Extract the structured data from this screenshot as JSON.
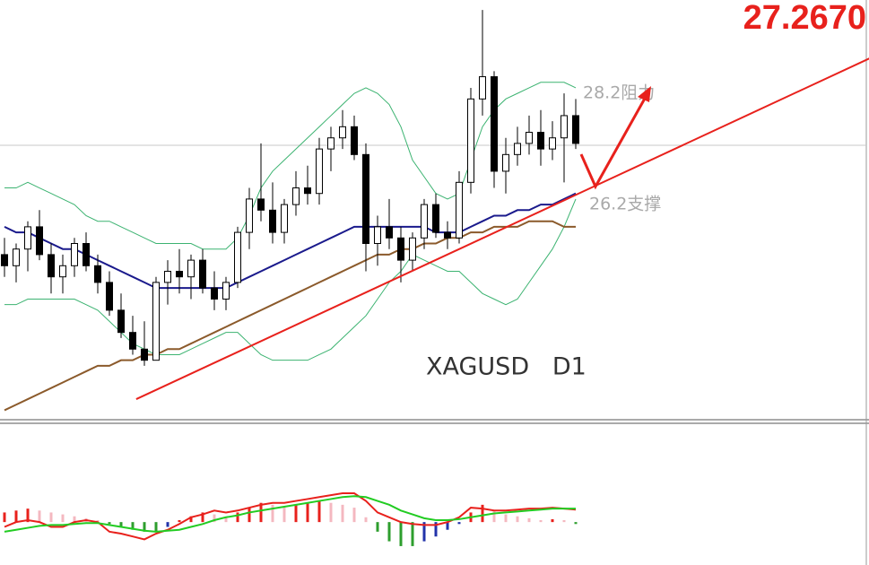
{
  "chart_data": [
    {
      "type": "candlestick",
      "title": "XAGUSD   D1",
      "price_line": {
        "value": 27.267,
        "label": "27.2670"
      },
      "levels": [
        {
          "value": 28.2,
          "label": "28.2阻力"
        },
        {
          "value": 26.2,
          "label": "26.2支撑"
        }
      ],
      "ylim": [
        22.33,
        29.88
      ],
      "open": [
        25.3,
        25.1,
        25.4,
        25.8,
        25.3,
        24.9,
        25.1,
        25.5,
        25.1,
        24.8,
        24.3,
        23.9,
        23.6,
        23.4,
        24.8,
        25.0,
        24.9,
        25.2,
        24.7,
        24.5,
        24.8,
        25.7,
        26.3,
        26.1,
        25.7,
        26.2,
        26.5,
        26.4,
        27.2,
        27.4,
        27.6,
        27.1,
        25.5,
        25.8,
        25.6,
        25.2,
        25.6,
        26.2,
        25.7,
        25.6,
        26.6,
        28.1,
        28.5,
        26.8,
        27.1,
        27.3,
        27.5,
        27.2,
        27.4,
        27.8
      ],
      "high": [
        25.6,
        25.5,
        25.9,
        26.1,
        25.5,
        25.3,
        25.6,
        25.7,
        25.3,
        25.0,
        24.6,
        24.2,
        24.1,
        24.9,
        25.2,
        25.4,
        25.3,
        25.4,
        25.0,
        24.9,
        25.8,
        26.5,
        27.3,
        26.6,
        26.3,
        26.8,
        26.9,
        27.4,
        27.6,
        27.9,
        27.8,
        27.3,
        26.0,
        26.3,
        25.8,
        25.7,
        26.3,
        26.4,
        25.9,
        26.8,
        28.3,
        29.7,
        28.6,
        27.4,
        27.6,
        27.8,
        27.9,
        27.7,
        28.2,
        28.1
      ],
      "low": [
        24.9,
        24.8,
        25.0,
        25.2,
        24.6,
        24.6,
        24.9,
        25.0,
        24.6,
        24.2,
        23.8,
        23.5,
        23.3,
        23.4,
        24.4,
        24.6,
        24.5,
        24.6,
        24.3,
        24.3,
        24.7,
        25.4,
        25.9,
        25.5,
        25.5,
        26.0,
        26.2,
        26.2,
        26.8,
        27.2,
        27.0,
        25.0,
        25.1,
        25.4,
        24.8,
        25.0,
        25.4,
        25.6,
        25.4,
        25.5,
        26.4,
        27.8,
        26.5,
        26.4,
        26.9,
        27.1,
        26.9,
        27.0,
        26.6,
        27.2
      ],
      "close": [
        25.1,
        25.4,
        25.8,
        25.3,
        24.9,
        25.1,
        25.5,
        25.1,
        24.8,
        24.3,
        23.9,
        23.6,
        23.4,
        24.8,
        25.0,
        24.9,
        25.2,
        24.7,
        24.5,
        24.8,
        25.7,
        26.3,
        26.1,
        25.7,
        26.2,
        26.5,
        26.4,
        27.2,
        27.4,
        27.6,
        27.1,
        25.5,
        25.8,
        25.6,
        25.2,
        25.6,
        26.2,
        25.7,
        25.6,
        26.6,
        28.1,
        28.5,
        26.8,
        27.1,
        27.3,
        27.5,
        27.2,
        27.4,
        27.8,
        27.3
      ],
      "series": [
        {
          "color": "#3cb371",
          "values": [
            26.5,
            26.5,
            26.6,
            26.5,
            26.4,
            26.3,
            26.2,
            26.0,
            25.9,
            25.9,
            25.8,
            25.7,
            25.6,
            25.5,
            25.5,
            25.5,
            25.5,
            25.4,
            25.4,
            25.4,
            25.6,
            26.0,
            26.5,
            26.8,
            27.0,
            27.2,
            27.4,
            27.6,
            27.8,
            28.0,
            28.2,
            28.3,
            28.2,
            28.0,
            27.6,
            27.0,
            26.7,
            26.4,
            26.3,
            26.4,
            27.0,
            27.6,
            27.9,
            28.1,
            28.2,
            28.3,
            28.4,
            28.4,
            28.4,
            28.3
          ]
        },
        {
          "color": "#3cb371",
          "values": [
            24.4,
            24.4,
            24.5,
            24.5,
            24.5,
            24.5,
            24.5,
            24.4,
            24.3,
            24.1,
            23.9,
            23.7,
            23.6,
            23.5,
            23.5,
            23.5,
            23.6,
            23.7,
            23.8,
            23.9,
            23.9,
            23.7,
            23.5,
            23.4,
            23.4,
            23.4,
            23.4,
            23.5,
            23.6,
            23.8,
            24.0,
            24.2,
            24.5,
            24.8,
            25.0,
            25.3,
            25.2,
            25.1,
            25.0,
            25.0,
            24.8,
            24.6,
            24.5,
            24.4,
            24.5,
            24.8,
            25.1,
            25.4,
            25.8,
            26.3
          ]
        },
        {
          "color": "#8b5a2b",
          "values": [
            22.5,
            22.6,
            22.7,
            22.8,
            22.9,
            23.0,
            23.1,
            23.2,
            23.3,
            23.3,
            23.4,
            23.4,
            23.5,
            23.5,
            23.6,
            23.6,
            23.7,
            23.8,
            23.9,
            24.0,
            24.1,
            24.2,
            24.3,
            24.4,
            24.5,
            24.6,
            24.7,
            24.8,
            24.9,
            25.0,
            25.1,
            25.2,
            25.3,
            25.3,
            25.4,
            25.4,
            25.5,
            25.5,
            25.6,
            25.6,
            25.7,
            25.7,
            25.8,
            25.8,
            25.8,
            25.9,
            25.9,
            25.9,
            25.8,
            25.8
          ]
        },
        {
          "color": "#1a1a8c",
          "values": [
            25.8,
            25.7,
            25.7,
            25.6,
            25.5,
            25.4,
            25.4,
            25.3,
            25.2,
            25.1,
            25.0,
            24.9,
            24.8,
            24.7,
            24.7,
            24.7,
            24.7,
            24.7,
            24.7,
            24.7,
            24.8,
            24.9,
            25.0,
            25.1,
            25.2,
            25.3,
            25.4,
            25.5,
            25.6,
            25.7,
            25.8,
            25.8,
            25.8,
            25.8,
            25.8,
            25.8,
            25.8,
            25.7,
            25.7,
            25.7,
            25.8,
            25.9,
            26.0,
            26.0,
            26.1,
            26.1,
            26.2,
            26.2,
            26.3,
            26.4
          ]
        }
      ],
      "trendline": {
        "color": "#e8211c",
        "x": [
          11.3,
          74.2
        ],
        "y": [
          22.7,
          28.83
        ]
      }
    },
    {
      "type": "macd",
      "ylim": [
        -0.4,
        1.0
      ],
      "values": [
        0.1,
        0.12,
        0.14,
        0.12,
        0.1,
        0.08,
        0.06,
        0.04,
        0.02,
        -0.02,
        -0.05,
        -0.08,
        -0.1,
        -0.1,
        -0.05,
        0.02,
        0.06,
        0.1,
        0.08,
        0.05,
        0.1,
        0.15,
        0.2,
        0.18,
        0.15,
        0.18,
        0.2,
        0.22,
        0.2,
        0.18,
        0.15,
        0.05,
        -0.1,
        -0.2,
        -0.25,
        -0.25,
        -0.2,
        -0.15,
        -0.08,
        -0.02,
        0.1,
        0.18,
        0.12,
        0.08,
        0.06,
        0.04,
        0.02,
        0.03,
        0.02,
        -0.02
      ],
      "colors": {
        "up_rising": "#e8211c",
        "up_falling": "#f4b8c0",
        "down_falling": "#2e9e2e",
        "down_rising": "#2233aa"
      },
      "series": [
        {
          "color": "#e8211c",
          "values": [
            -0.05,
            0,
            0.02,
            0.0,
            -0.05,
            -0.05,
            0,
            0.02,
            0,
            -0.1,
            -0.12,
            -0.15,
            -0.18,
            -0.12,
            -0.08,
            -0.02,
            0.05,
            0.08,
            0.12,
            0.1,
            0.12,
            0.15,
            0.18,
            0.2,
            0.2,
            0.22,
            0.24,
            0.26,
            0.28,
            0.3,
            0.3,
            0.22,
            0.1,
            0.05,
            0.0,
            -0.02,
            -0.03,
            -0.03,
            0.0,
            0.05,
            0.15,
            0.14,
            0.12,
            0.12,
            0.13,
            0.14,
            0.14,
            0.15,
            0.14,
            0.13
          ]
        },
        {
          "color": "#22cc22",
          "values": [
            -0.1,
            -0.08,
            -0.06,
            -0.04,
            -0.03,
            -0.03,
            -0.02,
            -0.01,
            -0.01,
            -0.03,
            -0.05,
            -0.07,
            -0.09,
            -0.1,
            -0.09,
            -0.08,
            -0.05,
            -0.02,
            0.02,
            0.05,
            0.07,
            0.1,
            0.12,
            0.14,
            0.16,
            0.18,
            0.2,
            0.22,
            0.24,
            0.26,
            0.27,
            0.26,
            0.22,
            0.18,
            0.12,
            0.08,
            0.04,
            0.02,
            0.02,
            0.03,
            0.05,
            0.07,
            0.09,
            0.1,
            0.11,
            0.12,
            0.13,
            0.14,
            0.14,
            0.14
          ]
        }
      ]
    }
  ]
}
